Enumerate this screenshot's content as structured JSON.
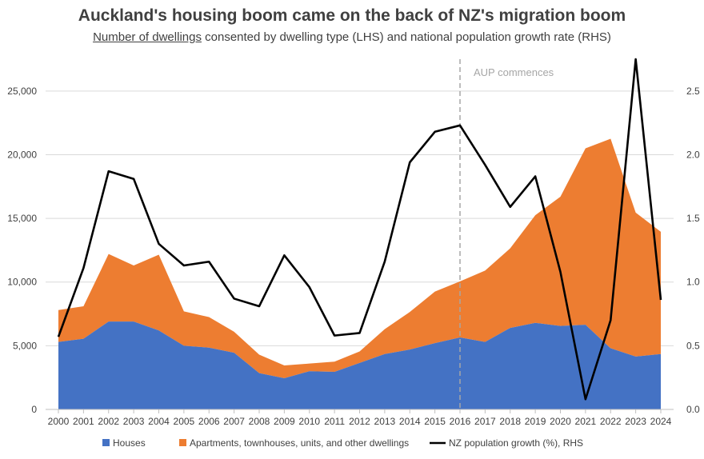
{
  "chart_data": {
    "type": "area",
    "title": "Auckland's housing boom came on the back of NZ's migration boom",
    "subtitle_underlined": "Number of dwellings",
    "subtitle_rest": " consented by dwelling type (LHS) and national population growth rate (RHS)",
    "categories": [
      "2000",
      "2001",
      "2002",
      "2003",
      "2004",
      "2005",
      "2006",
      "2007",
      "2008",
      "2009",
      "2010",
      "2011",
      "2012",
      "2013",
      "2014",
      "2015",
      "2016",
      "2017",
      "2018",
      "2019",
      "2020",
      "2021",
      "2022",
      "2023",
      "2024"
    ],
    "series": [
      {
        "name": "Houses",
        "axis": "left",
        "kind": "stacked-area",
        "color": "#4472c4",
        "values": [
          5300,
          5550,
          6900,
          6900,
          6200,
          5000,
          4850,
          4450,
          2850,
          2450,
          3000,
          2950,
          3650,
          4350,
          4700,
          5200,
          5650,
          5300,
          6400,
          6800,
          6550,
          6650,
          4800,
          4150,
          4350
        ]
      },
      {
        "name": "Apartments, townhouses, units, and other dwellings",
        "axis": "left",
        "kind": "stacked-area",
        "color": "#ed7d31",
        "values": [
          2500,
          2550,
          5300,
          4400,
          5950,
          2700,
          2400,
          1650,
          1450,
          1000,
          600,
          800,
          900,
          1950,
          2950,
          4050,
          4400,
          5600,
          6250,
          8450,
          10150,
          13850,
          16450,
          11300,
          9600
        ]
      },
      {
        "name": "NZ population growth (%), RHS",
        "axis": "right",
        "kind": "line",
        "color": "#000000",
        "values": [
          0.57,
          1.11,
          1.87,
          1.81,
          1.3,
          1.13,
          1.16,
          0.87,
          0.81,
          1.21,
          0.96,
          0.58,
          0.6,
          1.16,
          1.94,
          2.18,
          2.23,
          1.92,
          1.59,
          1.83,
          1.08,
          0.08,
          0.7,
          2.75,
          0.86
        ]
      }
    ],
    "y_left": {
      "min": 0,
      "max": 27500,
      "ticks": [
        0,
        5000,
        10000,
        15000,
        20000,
        25000
      ],
      "tick_labels": [
        "0",
        "5,000",
        "10,000",
        "15,000",
        "20,000",
        "25,000"
      ]
    },
    "y_right": {
      "min": 0,
      "max": 2.75,
      "ticks": [
        0,
        0.5,
        1.0,
        1.5,
        2.0,
        2.5
      ],
      "tick_labels": [
        "0.0",
        "0.5",
        "1.0",
        "1.5",
        "2.0",
        "2.5"
      ]
    },
    "annotation": {
      "text": "AUP commences",
      "at_category": "2016"
    },
    "grid": "horizontal",
    "legend_position": "bottom",
    "legend": [
      {
        "label": "Houses",
        "marker": "square",
        "color": "#4472c4"
      },
      {
        "label": "Apartments, townhouses, units, and other dwellings",
        "marker": "square",
        "color": "#ed7d31"
      },
      {
        "label": "NZ population growth (%), RHS",
        "marker": "line",
        "color": "#000000"
      }
    ],
    "colors": {
      "grid": "#d9d9d9",
      "axis": "#bfbfbf",
      "annotation_line": "#a6a6a6",
      "text": "#404040"
    }
  }
}
